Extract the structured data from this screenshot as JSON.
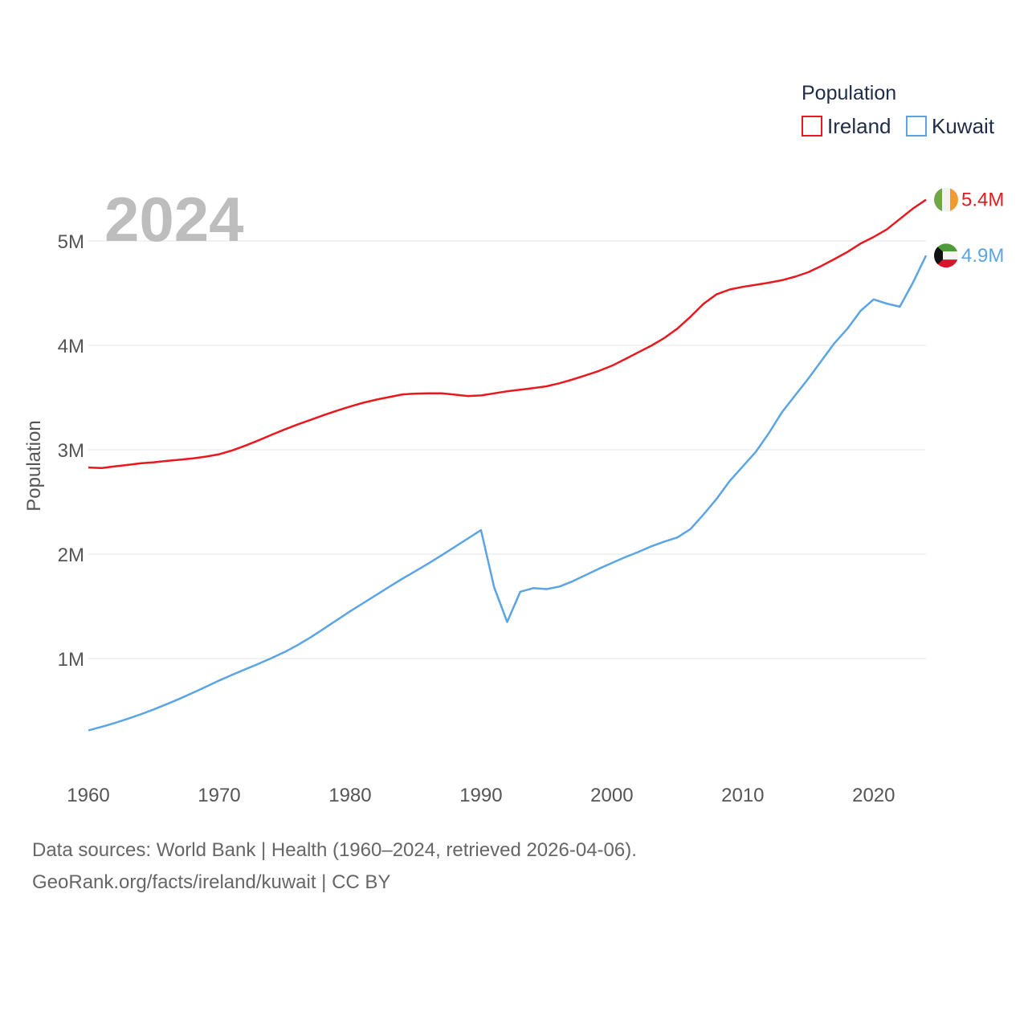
{
  "chart_data": {
    "type": "line",
    "year_label": "2024",
    "ylabel": "Population",
    "xlabel": "",
    "xlim": [
      1960,
      2024
    ],
    "ylim": [
      0,
      5600000
    ],
    "x_ticks": [
      1960,
      1970,
      1980,
      1990,
      2000,
      2010,
      2020
    ],
    "y_ticks": [
      {
        "value": 1000000,
        "label": "1M"
      },
      {
        "value": 2000000,
        "label": "2M"
      },
      {
        "value": 3000000,
        "label": "3M"
      },
      {
        "value": 4000000,
        "label": "4M"
      },
      {
        "value": 5000000,
        "label": "5M"
      }
    ],
    "legend": {
      "title": "Population",
      "position": "top-right"
    },
    "x": [
      1960,
      1961,
      1962,
      1963,
      1964,
      1965,
      1966,
      1967,
      1968,
      1969,
      1970,
      1971,
      1972,
      1973,
      1974,
      1975,
      1976,
      1977,
      1978,
      1979,
      1980,
      1981,
      1982,
      1983,
      1984,
      1985,
      1986,
      1987,
      1988,
      1989,
      1990,
      1991,
      1992,
      1993,
      1994,
      1995,
      1996,
      1997,
      1998,
      1999,
      2000,
      2001,
      2002,
      2003,
      2004,
      2005,
      2006,
      2007,
      2008,
      2009,
      2010,
      2011,
      2012,
      2013,
      2014,
      2015,
      2016,
      2017,
      2018,
      2019,
      2020,
      2021,
      2022,
      2023,
      2024
    ],
    "series": [
      {
        "name": "Ireland",
        "color": "#e8191e",
        "end_label": "5.4M",
        "flag": "ireland-flag-icon",
        "values": [
          2830000,
          2825000,
          2840000,
          2855000,
          2870000,
          2880000,
          2893000,
          2905000,
          2918000,
          2935000,
          2957000,
          2994000,
          3040000,
          3090000,
          3143000,
          3195000,
          3243000,
          3287000,
          3332000,
          3375000,
          3414000,
          3450000,
          3480000,
          3505000,
          3530000,
          3538000,
          3540000,
          3540000,
          3528000,
          3515000,
          3520000,
          3540000,
          3560000,
          3575000,
          3590000,
          3608000,
          3637000,
          3673000,
          3713000,
          3755000,
          3805000,
          3867000,
          3932000,
          3996000,
          4070000,
          4160000,
          4274000,
          4398000,
          4489000,
          4535000,
          4560000,
          4580000,
          4600000,
          4624000,
          4658000,
          4700000,
          4760000,
          4826000,
          4895000,
          4975000,
          5038000,
          5110000,
          5210000,
          5310000,
          5395000
        ]
      },
      {
        "name": "Kuwait",
        "color": "#5ba4e5",
        "end_label": "4.9M",
        "flag": "kuwait-flag-icon",
        "values": [
          312000,
          345000,
          382000,
          422000,
          466000,
          513000,
          564000,
          617000,
          673000,
          731000,
          790000,
          845000,
          898000,
          950000,
          1005000,
          1063000,
          1130000,
          1205000,
          1286000,
          1370000,
          1452000,
          1531000,
          1609000,
          1688000,
          1765000,
          1838000,
          1912000,
          1990000,
          2070000,
          2150000,
          2230000,
          1685000,
          1350000,
          1640000,
          1675000,
          1665000,
          1690000,
          1740000,
          1800000,
          1860000,
          1915000,
          1970000,
          2020000,
          2075000,
          2120000,
          2160000,
          2240000,
          2380000,
          2530000,
          2700000,
          2840000,
          2980000,
          3160000,
          3360000,
          3520000,
          3680000,
          3850000,
          4020000,
          4160000,
          4330000,
          4440000,
          4400000,
          4370000,
          4600000,
          4860000
        ]
      }
    ]
  },
  "source": {
    "line1": "Data sources: World Bank | Health (1960–2024, retrieved 2026-04-06).",
    "line2": "GeoRank.org/facts/ireland/kuwait | CC BY"
  }
}
